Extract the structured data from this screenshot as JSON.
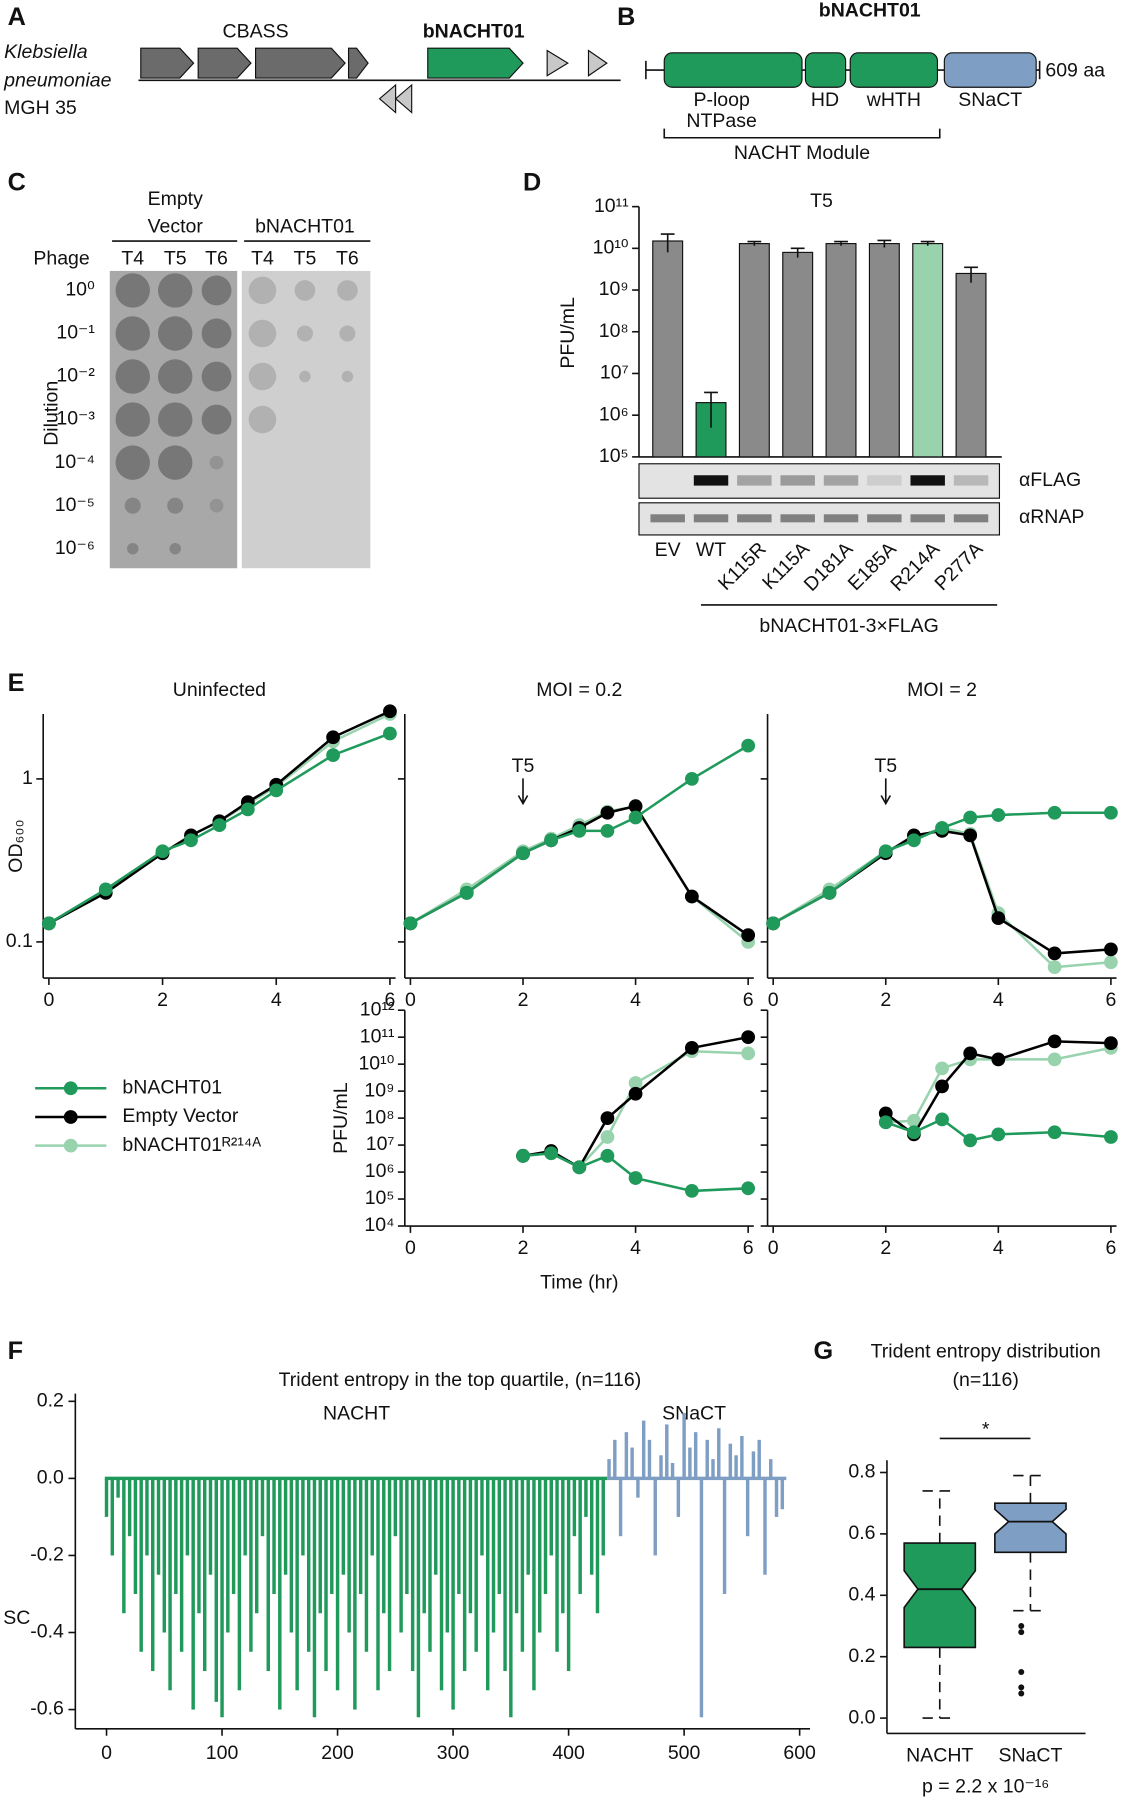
{
  "panel_labels": [
    "A",
    "B",
    "C",
    "D",
    "E",
    "F",
    "G"
  ],
  "panel_a": {
    "organism": [
      "Klebsiella",
      "pneumoniae",
      "MGH 35"
    ],
    "operon_label": "CBASS",
    "gene_label": "bNACHT01"
  },
  "panel_b": {
    "title": "bNACHT01",
    "domain_labels": [
      "P-loop",
      "NTPase",
      "HD",
      "wHTH",
      "SNaCT"
    ],
    "length_label": "609 aa",
    "module_label": "NACHT Module"
  },
  "panel_c": {
    "header_groups": [
      "Empty",
      "Vector",
      "bNACHT01"
    ],
    "row_header": "Phage",
    "phages": [
      "T4",
      "T5",
      "T6",
      "T4",
      "T5",
      "T6"
    ],
    "dilution_labels": [
      "10⁰",
      "10⁻¹",
      "10⁻²",
      "10⁻³",
      "10⁻⁴",
      "10⁻⁵",
      "10⁻⁶"
    ],
    "axis_label": "Dilution"
  },
  "chart_data": [
    {
      "type": "bar",
      "title": "T5",
      "ylabel": "PFU/mL",
      "categories": [
        "EV",
        "WT",
        "K115R",
        "K115A",
        "D181A",
        "E185A",
        "R214A",
        "P277A"
      ],
      "values": [
        15000000000.0,
        2000000.0,
        13000000000.0,
        8000000000.0,
        13000000000.0,
        13000000000.0,
        13000000000.0,
        2500000000.0
      ],
      "errors": [
        7000000000.0,
        1500000.0,
        1500000000.0,
        2000000000.0,
        1500000000.0,
        2500000000.0,
        1500000000.0,
        1000000000.0
      ],
      "colors": [
        "#8a8a8a",
        "#1f9a5b",
        "#8a8a8a",
        "#8a8a8a",
        "#8a8a8a",
        "#8a8a8a",
        "#98d3ad",
        "#8a8a8a"
      ],
      "log_y": true,
      "ylim": [
        100000.0,
        100000000000.0
      ],
      "yticks": [
        {
          "value": 100000.0,
          "label": "10⁵"
        },
        {
          "value": 1000000.0,
          "label": "10⁶"
        },
        {
          "value": 10000000.0,
          "label": "10⁷"
        },
        {
          "value": 100000000.0,
          "label": "10⁸"
        },
        {
          "value": 1000000000.0,
          "label": "10⁹"
        },
        {
          "value": 10000000000.0,
          "label": "10¹⁰"
        },
        {
          "value": 100000000000.0,
          "label": "10¹¹"
        }
      ],
      "blot_labels": [
        "αFLAG",
        "αRNAP"
      ],
      "group_label": "bNACHT01-3×FLAG"
    },
    {
      "type": "line",
      "title": "Uninfected",
      "ylabel": "OD₆₀₀",
      "log_y": true,
      "xlim": [
        -0.1,
        6.1
      ],
      "ylim": [
        0.06,
        2.5
      ],
      "xticks": [
        0,
        2,
        4,
        6
      ],
      "yticks": [
        0.1,
        1
      ],
      "x": [
        0,
        1,
        2,
        2.5,
        3,
        3.5,
        4,
        5,
        6
      ],
      "series": [
        {
          "name": "bNACHT01",
          "color": "#1f9a5b",
          "values": [
            0.13,
            0.21,
            0.36,
            0.42,
            0.52,
            0.65,
            0.85,
            1.4,
            1.9
          ]
        },
        {
          "name": "Empty Vector",
          "color": "#000000",
          "values": [
            0.13,
            0.2,
            0.35,
            0.45,
            0.55,
            0.72,
            0.92,
            1.8,
            2.6
          ]
        },
        {
          "name": "bNACHT01ᴿ²¹⁴ᴬ",
          "color": "#98d3ad",
          "values": [
            0.13,
            0.2,
            0.35,
            0.45,
            0.55,
            0.7,
            0.9,
            1.7,
            2.5
          ]
        }
      ]
    },
    {
      "type": "line",
      "title": "MOI = 0.2",
      "annotation": {
        "text": "T5",
        "x": 2
      },
      "log_y": true,
      "xlim": [
        -0.1,
        6.1
      ],
      "ylim": [
        0.06,
        2.5
      ],
      "xticks": [
        0,
        2,
        4,
        6
      ],
      "yticks": [
        0.1,
        1
      ],
      "ytick_labels": false,
      "x": [
        0,
        1,
        2,
        2.5,
        3,
        3.5,
        4,
        5,
        6
      ],
      "series": [
        {
          "color": "#1f9a5b",
          "values": [
            0.13,
            0.2,
            0.35,
            0.42,
            0.48,
            0.48,
            0.58,
            1.0,
            1.6
          ]
        },
        {
          "color": "#000000",
          "values": [
            0.13,
            0.2,
            0.35,
            0.42,
            0.5,
            0.62,
            0.68,
            0.19,
            0.11
          ]
        },
        {
          "color": "#98d3ad",
          "values": [
            0.13,
            0.21,
            0.36,
            0.43,
            0.52,
            0.63,
            0.68,
            0.19,
            0.1
          ]
        }
      ]
    },
    {
      "type": "line",
      "title": "MOI = 2",
      "annotation": {
        "text": "T5",
        "x": 2
      },
      "log_y": true,
      "xlim": [
        -0.1,
        6.1
      ],
      "ylim": [
        0.06,
        2.5
      ],
      "xticks": [
        0,
        2,
        4,
        6
      ],
      "yticks": [
        0.1,
        1
      ],
      "ytick_labels": false,
      "x": [
        0,
        1,
        2,
        2.5,
        3,
        3.5,
        4,
        5,
        6
      ],
      "series": [
        {
          "color": "#1f9a5b",
          "values": [
            0.13,
            0.2,
            0.36,
            0.42,
            0.5,
            0.58,
            0.6,
            0.62,
            0.62
          ]
        },
        {
          "color": "#000000",
          "values": [
            0.13,
            0.2,
            0.35,
            0.45,
            0.48,
            0.45,
            0.14,
            0.085,
            0.09
          ]
        },
        {
          "color": "#98d3ad",
          "values": [
            0.13,
            0.21,
            0.36,
            0.43,
            0.5,
            0.46,
            0.15,
            0.07,
            0.075
          ]
        }
      ]
    },
    {
      "type": "line",
      "ylabel": "PFU/mL",
      "xlabel": "Time (hr)",
      "log_y": true,
      "xlim": [
        -0.1,
        6.1
      ],
      "ylim": [
        10000.0,
        1000000000000.0
      ],
      "xticks": [
        0,
        2,
        4,
        6
      ],
      "yticks": [
        {
          "value": 10000.0,
          "label": "10⁴"
        },
        {
          "value": 100000.0,
          "label": "10⁵"
        },
        {
          "value": 1000000.0,
          "label": "10⁶"
        },
        {
          "value": 10000000.0,
          "label": "10⁷"
        },
        {
          "value": 100000000.0,
          "label": "10⁸"
        },
        {
          "value": 1000000000.0,
          "label": "10⁹"
        },
        {
          "value": 10000000000.0,
          "label": "10¹⁰"
        },
        {
          "value": 100000000000.0,
          "label": "10¹¹"
        },
        {
          "value": 1000000000000.0,
          "label": "10¹²"
        }
      ],
      "x": [
        2,
        2.5,
        3,
        3.5,
        4,
        5,
        6
      ],
      "series": [
        {
          "color": "#1f9a5b",
          "values": [
            4000000.0,
            5000000.0,
            1500000.0,
            4000000.0,
            600000.0,
            200000.0,
            250000.0
          ]
        },
        {
          "color": "#000000",
          "values": [
            4000000.0,
            6000000.0,
            1500000.0,
            100000000.0,
            800000000.0,
            40000000000.0,
            100000000000.0
          ]
        },
        {
          "color": "#98d3ad",
          "values": [
            4000000.0,
            5000000.0,
            1500000.0,
            20000000.0,
            2000000000.0,
            30000000000.0,
            25000000000.0
          ]
        }
      ]
    },
    {
      "type": "line",
      "log_y": true,
      "xlim": [
        -0.1,
        6.1
      ],
      "ylim": [
        10000.0,
        1000000000000.0
      ],
      "xticks": [
        0,
        2,
        4,
        6
      ],
      "yticks": [
        10000.0,
        100000.0,
        1000000.0,
        10000000.0,
        100000000.0,
        1000000000.0,
        10000000000.0,
        100000000000.0,
        1000000000000.0
      ],
      "ytick_labels": false,
      "x": [
        2,
        2.5,
        3,
        3.5,
        4,
        5,
        6
      ],
      "series": [
        {
          "color": "#1f9a5b",
          "values": [
            70000000.0,
            30000000.0,
            90000000.0,
            15000000.0,
            25000000.0,
            30000000.0,
            20000000.0
          ]
        },
        {
          "color": "#000000",
          "values": [
            150000000.0,
            25000000.0,
            1500000000.0,
            25000000000.0,
            15000000000.0,
            70000000000.0,
            60000000000.0
          ]
        },
        {
          "color": "#98d3ad",
          "values": [
            70000000.0,
            80000000.0,
            7000000000.0,
            15000000000.0,
            15000000000.0,
            15000000000.0,
            40000000000.0
          ]
        }
      ]
    },
    {
      "type": "spikes",
      "title": "Trident entropy in the top quartile, (n=116)",
      "ylabel": "SC",
      "xlim": [
        -27,
        609
      ],
      "ylim": [
        -0.65,
        0.22
      ],
      "xticks": [
        0,
        100,
        200,
        300,
        400,
        500,
        600
      ],
      "yticks": [
        -0.6,
        -0.4,
        -0.2,
        {
          "value": 0,
          "label": "0.0"
        },
        0.2
      ],
      "series": [
        {
          "name": "NACHT",
          "color": "#1f9a5b",
          "x": [
            0,
            5,
            10,
            15,
            20,
            25,
            30,
            35,
            40,
            45,
            50,
            55,
            60,
            65,
            70,
            75,
            80,
            85,
            90,
            95,
            100,
            105,
            110,
            115,
            120,
            125,
            130,
            135,
            140,
            145,
            150,
            155,
            160,
            165,
            170,
            175,
            180,
            185,
            190,
            195,
            200,
            205,
            210,
            215,
            220,
            225,
            230,
            235,
            240,
            245,
            250,
            255,
            260,
            265,
            270,
            275,
            280,
            285,
            290,
            295,
            300,
            305,
            310,
            315,
            320,
            325,
            330,
            335,
            340,
            345,
            350,
            355,
            360,
            365,
            370,
            375,
            380,
            385,
            390,
            395,
            400,
            405,
            410,
            415,
            420,
            425,
            430
          ],
          "values": [
            -0.1,
            -0.2,
            -0.05,
            -0.35,
            -0.15,
            -0.3,
            -0.45,
            -0.2,
            -0.5,
            -0.25,
            -0.4,
            -0.55,
            -0.3,
            -0.45,
            -0.2,
            -0.6,
            -0.35,
            -0.5,
            -0.25,
            -0.58,
            -0.62,
            -0.4,
            -0.3,
            -0.55,
            -0.2,
            -0.45,
            -0.35,
            -0.15,
            -0.5,
            -0.3,
            -0.6,
            -0.25,
            -0.4,
            -0.55,
            -0.2,
            -0.45,
            -0.62,
            -0.35,
            -0.5,
            -0.3,
            -0.55,
            -0.25,
            -0.4,
            -0.6,
            -0.3,
            -0.45,
            -0.2,
            -0.55,
            -0.35,
            -0.5,
            -0.15,
            -0.4,
            -0.3,
            -0.5,
            -0.62,
            -0.35,
            -0.45,
            -0.25,
            -0.55,
            -0.4,
            -0.6,
            -0.3,
            -0.5,
            -0.35,
            -0.45,
            -0.2,
            -0.55,
            -0.4,
            -0.3,
            -0.5,
            -0.62,
            -0.35,
            -0.45,
            -0.25,
            -0.55,
            -0.4,
            -0.3,
            -0.2,
            -0.45,
            -0.35,
            -0.5,
            -0.15,
            -0.3,
            -0.1,
            -0.25,
            -0.35,
            -0.2
          ]
        },
        {
          "name": "SNaCT",
          "color": "#7f9ec4",
          "x": [
            435,
            440,
            445,
            450,
            455,
            460,
            465,
            470,
            475,
            480,
            485,
            490,
            495,
            500,
            505,
            510,
            515,
            520,
            525,
            530,
            535,
            540,
            545,
            550,
            555,
            560,
            565,
            570,
            575,
            580,
            585
          ],
          "values": [
            0.05,
            0.1,
            -0.15,
            0.12,
            0.08,
            -0.05,
            0.15,
            0.1,
            -0.2,
            0.06,
            0.14,
            0.04,
            -0.1,
            0.17,
            0.08,
            0.12,
            -0.62,
            0.1,
            0.05,
            0.13,
            -0.3,
            0.09,
            0.06,
            0.11,
            -0.15,
            0.07,
            0.1,
            -0.25,
            0.05,
            -0.1,
            -0.08
          ]
        }
      ]
    },
    {
      "type": "box",
      "title": "Trident entropy distribution",
      "subtitle": "(n=116)",
      "categories": [
        "NACHT",
        "SNaCT"
      ],
      "colors": [
        "#1f9a5b",
        "#7f9ec4"
      ],
      "boxes": [
        {
          "low": 0,
          "q1": 0.23,
          "notch_low": 0.36,
          "median": 0.42,
          "notch_high": 0.48,
          "q3": 0.57,
          "high": 0.74,
          "outliers": []
        },
        {
          "low": 0.35,
          "q1": 0.54,
          "notch_low": 0.6,
          "median": 0.64,
          "notch_high": 0.68,
          "q3": 0.7,
          "high": 0.79,
          "outliers": [
            0.3,
            0.28,
            0.15,
            0.1,
            0.08
          ]
        }
      ],
      "ylim": [
        -0.02,
        0.84
      ],
      "yticks": [
        {
          "value": 0,
          "label": "0.0"
        },
        0.2,
        0.4,
        0.6,
        0.8
      ],
      "annotation": "*",
      "footnote": "p = 2.2 x 10⁻¹⁶"
    }
  ]
}
